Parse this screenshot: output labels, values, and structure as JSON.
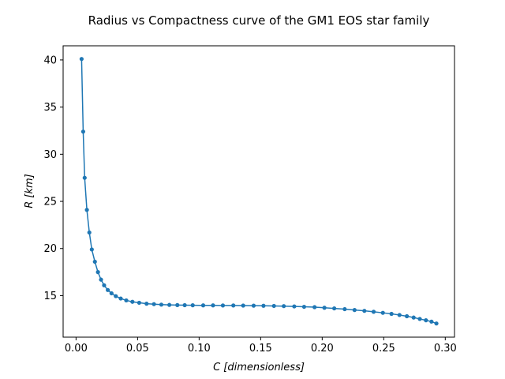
{
  "chart_data": {
    "type": "line",
    "title": "Radius vs Compactness curve of the GM1 EOS star family",
    "xlabel": "C [dimensionless]",
    "ylabel": "R [km]",
    "xlim": [
      -0.0105,
      0.3075
    ],
    "ylim": [
      10.6,
      41.5
    ],
    "x_ticks": [
      0.0,
      0.05,
      0.1,
      0.15,
      0.2,
      0.25,
      0.3
    ],
    "x_tick_labels": [
      "0.00",
      "0.05",
      "0.10",
      "0.15",
      "0.20",
      "0.25",
      "0.30"
    ],
    "y_ticks": [
      15,
      20,
      25,
      30,
      35,
      40
    ],
    "y_tick_labels": [
      "15",
      "20",
      "25",
      "30",
      "35",
      "40"
    ],
    "grid": false,
    "series": [
      {
        "color": "#1f77b4",
        "marker": "circle",
        "x": [
          0.0045,
          0.0058,
          0.007,
          0.0088,
          0.0108,
          0.0128,
          0.0153,
          0.0178,
          0.0203,
          0.0228,
          0.0258,
          0.0288,
          0.0323,
          0.0363,
          0.0408,
          0.0458,
          0.0513,
          0.0573,
          0.0633,
          0.0693,
          0.0758,
          0.0823,
          0.0883,
          0.0948,
          0.1033,
          0.1113,
          0.1193,
          0.1278,
          0.1358,
          0.1443,
          0.1523,
          0.1608,
          0.1688,
          0.1773,
          0.1853,
          0.1938,
          0.2018,
          0.2098,
          0.2183,
          0.2263,
          0.2343,
          0.2418,
          0.2493,
          0.2563,
          0.2628,
          0.2688,
          0.2743,
          0.2793,
          0.2843,
          0.2888,
          0.2928
        ],
        "y": [
          40.1,
          32.4,
          27.5,
          24.1,
          21.7,
          19.9,
          18.6,
          17.5,
          16.7,
          16.1,
          15.6,
          15.25,
          14.95,
          14.7,
          14.5,
          14.35,
          14.25,
          14.15,
          14.1,
          14.05,
          14.02,
          14.0,
          13.99,
          13.98,
          13.97,
          13.97,
          13.96,
          13.96,
          13.95,
          13.94,
          13.93,
          13.91,
          13.89,
          13.86,
          13.82,
          13.78,
          13.72,
          13.65,
          13.57,
          13.48,
          13.39,
          13.29,
          13.18,
          13.07,
          12.95,
          12.82,
          12.68,
          12.53,
          12.39,
          12.25,
          12.05
        ]
      }
    ]
  }
}
